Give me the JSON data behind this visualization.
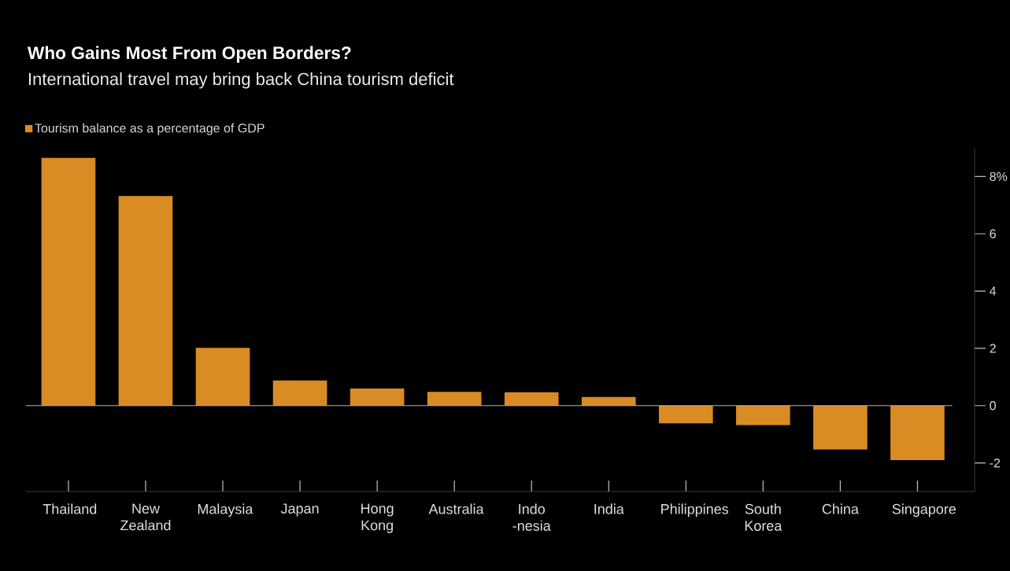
{
  "chart_data": {
    "type": "bar",
    "title": "Who Gains Most From Open Borders?",
    "subtitle": "International travel may bring back China tourism deficit",
    "categories": [
      "Thailand",
      "New Zealand",
      "Malaysia",
      "Japan",
      "Hong Kong",
      "Australia",
      "Indo -nesia",
      "India",
      "Philippines",
      "South Korea",
      "China",
      "Singapore"
    ],
    "series": [
      {
        "name": "Tourism balance as a percentage of GDP",
        "color": "#d98b24",
        "values": [
          8.65,
          7.32,
          2.02,
          0.88,
          0.6,
          0.48,
          0.47,
          0.3,
          -0.62,
          -0.68,
          -1.53,
          -1.9
        ]
      }
    ],
    "ylim": [
      -3,
      9
    ],
    "yticks": [
      -2,
      0,
      2,
      4,
      6,
      {
        "value": 8,
        "label": "8%"
      }
    ],
    "ref_lines": [
      {
        "axis": "y",
        "value": 0,
        "color": "#b2b2b2"
      }
    ],
    "legend": "top left"
  }
}
